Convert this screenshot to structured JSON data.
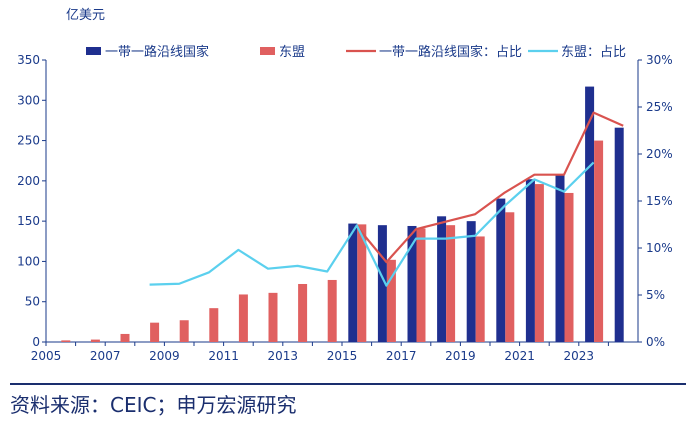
{
  "chart_data": {
    "type": "bar",
    "x": [
      2005,
      2006,
      2007,
      2008,
      2009,
      2010,
      2011,
      2012,
      2013,
      2014,
      2015,
      2016,
      2017,
      2018,
      2019,
      2020,
      2021,
      2022,
      2023,
      2024
    ],
    "xticks": [
      "2005",
      "2007",
      "2009",
      "2011",
      "2013",
      "2015",
      "2017",
      "2019",
      "2021",
      "2023"
    ],
    "y_left_unit": "亿美元",
    "ylim_left": [
      0,
      350
    ],
    "yticks_left": [
      "0",
      "50",
      "100",
      "150",
      "200",
      "250",
      "300",
      "350"
    ],
    "ylim_right": [
      0,
      30
    ],
    "yticks_right": [
      "0%",
      "5%",
      "10%",
      "15%",
      "20%",
      "25%",
      "30%"
    ],
    "series": [
      {
        "name": "一带一路沿线国家",
        "kind": "bar",
        "axis": "left",
        "color": "#1f2f8f",
        "values": [
          null,
          null,
          null,
          null,
          null,
          null,
          null,
          null,
          null,
          null,
          147,
          145,
          144,
          156,
          150,
          178,
          202,
          207,
          317,
          266
        ]
      },
      {
        "name": "东盟",
        "kind": "bar",
        "axis": "left",
        "color": "#e06060",
        "values": [
          2,
          3,
          10,
          24,
          27,
          42,
          59,
          61,
          72,
          77,
          146,
          102,
          141,
          145,
          131,
          161,
          196,
          185,
          250,
          null
        ]
      },
      {
        "name": "一带一路沿线国家：占比",
        "kind": "line",
        "axis": "right",
        "color": "#d9534f",
        "values": [
          null,
          null,
          null,
          null,
          null,
          null,
          null,
          null,
          null,
          null,
          12.3,
          8.5,
          12.0,
          12.8,
          13.6,
          15.9,
          17.8,
          17.8,
          24.4,
          23.0
        ]
      },
      {
        "name": "东盟：占比",
        "kind": "line",
        "axis": "right",
        "color": "#5bd0ee",
        "values": [
          null,
          null,
          null,
          6.1,
          6.2,
          7.4,
          9.8,
          7.8,
          8.1,
          7.5,
          12.4,
          6.0,
          11.0,
          11.0,
          11.3,
          14.5,
          17.3,
          16.0,
          19.1,
          null
        ]
      }
    ]
  },
  "source_text": "资料来源：CEIC；申万宏源研究"
}
